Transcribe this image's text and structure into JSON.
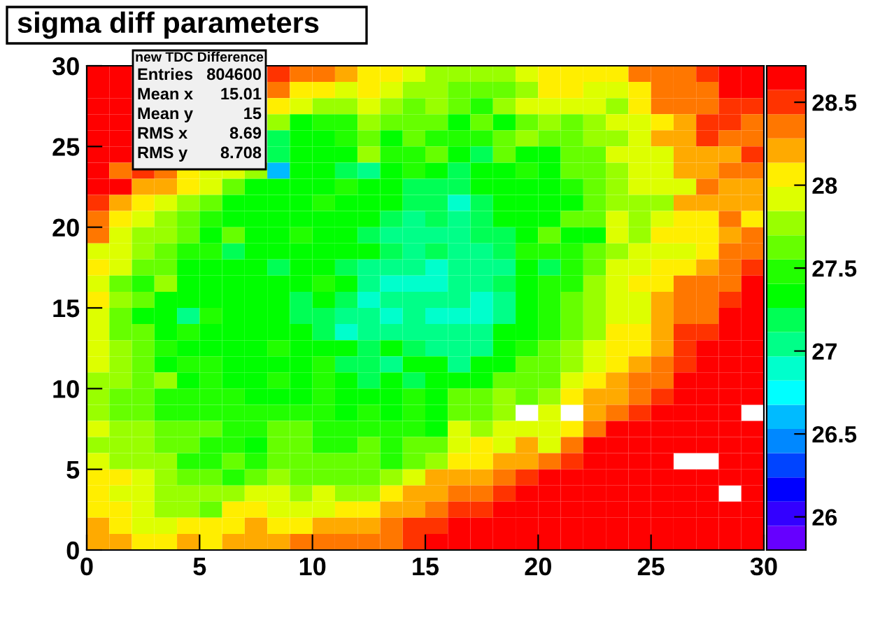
{
  "chart_data": {
    "type": "heatmap",
    "title": "sigma diff parameters",
    "annotations": [
      "new TDC Difference",
      "Entries 804600",
      "Mean x 15.01",
      "Mean y 15",
      "RMS x 8.69",
      "RMS y 8.708"
    ],
    "xlim": [
      0,
      30
    ],
    "ylim": [
      0,
      30
    ],
    "xticks": [
      0,
      5,
      10,
      15,
      20,
      25,
      30
    ],
    "yticks": [
      0,
      5,
      10,
      15,
      20,
      25,
      30
    ],
    "clim": [
      25.8,
      28.72
    ],
    "cticks": [
      26,
      26.5,
      27,
      27.5,
      28,
      28.5
    ],
    "grid": false,
    "cells": [
      [
        28.65,
        28.65,
        null,
        null,
        null,
        null,
        null,
        null,
        28.5,
        28.35,
        28.35,
        28.21,
        28.06,
        28.06,
        27.92,
        27.77,
        27.77,
        27.77,
        27.77,
        27.92,
        28.06,
        28.06,
        28.06,
        28.06,
        28.35,
        28.35,
        28.35,
        28.5,
        28.65,
        28.65
      ],
      [
        28.65,
        28.65,
        null,
        null,
        null,
        null,
        null,
        null,
        28.35,
        28.06,
        28.06,
        27.92,
        28.06,
        27.92,
        27.77,
        27.77,
        27.63,
        27.63,
        27.63,
        27.77,
        28.06,
        28.06,
        27.92,
        27.92,
        28.06,
        28.35,
        28.35,
        28.35,
        28.65,
        28.65
      ],
      [
        28.65,
        28.65,
        null,
        null,
        null,
        null,
        null,
        null,
        28.06,
        27.92,
        27.77,
        27.77,
        27.92,
        27.77,
        27.63,
        27.77,
        27.63,
        27.48,
        27.77,
        27.92,
        27.92,
        27.92,
        27.92,
        27.77,
        28.06,
        28.35,
        28.35,
        28.35,
        28.5,
        28.5
      ],
      [
        28.65,
        28.65,
        null,
        null,
        null,
        null,
        null,
        null,
        27.77,
        27.33,
        27.48,
        27.48,
        27.77,
        27.63,
        27.63,
        27.63,
        27.33,
        27.63,
        27.33,
        27.63,
        27.77,
        27.63,
        27.77,
        27.92,
        27.92,
        28.06,
        28.21,
        28.5,
        28.5,
        28.35
      ],
      [
        28.65,
        28.65,
        null,
        null,
        null,
        null,
        null,
        null,
        27.19,
        27.33,
        27.33,
        27.48,
        27.63,
        27.33,
        27.63,
        27.48,
        27.48,
        27.48,
        27.63,
        27.77,
        27.63,
        27.63,
        27.77,
        27.77,
        27.92,
        28.21,
        28.21,
        28.5,
        28.35,
        28.35
      ],
      [
        28.65,
        28.65,
        null,
        null,
        null,
        null,
        null,
        null,
        27.19,
        27.33,
        27.33,
        27.33,
        27.77,
        27.48,
        27.48,
        27.63,
        27.33,
        27.19,
        27.63,
        27.33,
        27.33,
        27.63,
        27.63,
        27.92,
        27.92,
        27.92,
        28.21,
        28.21,
        28.21,
        28.5
      ],
      [
        28.65,
        28.35,
        28.5,
        28.35,
        28.06,
        27.92,
        27.92,
        27.77,
        26.6,
        27.33,
        27.33,
        27.19,
        27.04,
        27.33,
        27.48,
        27.33,
        27.19,
        27.33,
        27.33,
        27.48,
        27.33,
        27.63,
        27.63,
        27.77,
        27.92,
        27.92,
        28.21,
        28.21,
        28.35,
        28.35
      ],
      [
        28.65,
        28.65,
        28.21,
        28.21,
        28.06,
        27.92,
        27.63,
        27.33,
        27.33,
        27.33,
        27.33,
        27.48,
        27.33,
        27.33,
        27.19,
        27.19,
        27.19,
        27.33,
        27.33,
        27.33,
        27.33,
        27.48,
        27.63,
        27.77,
        27.92,
        27.92,
        27.92,
        28.35,
        28.21,
        28.21
      ],
      [
        28.5,
        28.21,
        28.06,
        27.92,
        27.77,
        27.63,
        27.33,
        27.33,
        27.33,
        27.33,
        27.48,
        27.33,
        27.33,
        27.33,
        27.19,
        27.19,
        26.9,
        27.19,
        27.33,
        27.33,
        27.33,
        27.33,
        27.63,
        27.77,
        27.77,
        27.77,
        28.21,
        28.21,
        28.21,
        28.21
      ],
      [
        28.35,
        28.06,
        27.92,
        27.77,
        27.63,
        27.48,
        27.33,
        27.33,
        27.33,
        27.33,
        27.33,
        27.33,
        27.33,
        27.19,
        27.04,
        27.19,
        27.04,
        27.19,
        27.33,
        27.33,
        27.33,
        27.63,
        27.63,
        27.92,
        27.77,
        27.92,
        28.06,
        28.06,
        28.35,
        28.06
      ],
      [
        28.35,
        27.92,
        27.77,
        27.77,
        27.63,
        27.33,
        27.63,
        27.33,
        27.33,
        27.48,
        27.33,
        27.33,
        27.19,
        27.04,
        27.04,
        27.04,
        27.04,
        27.19,
        27.19,
        27.33,
        27.63,
        27.33,
        27.33,
        27.92,
        27.77,
        28.06,
        28.06,
        28.06,
        28.21,
        28.35
      ],
      [
        27.92,
        27.92,
        27.77,
        27.63,
        27.48,
        27.48,
        27.19,
        27.33,
        27.33,
        27.33,
        27.33,
        27.33,
        27.33,
        27.19,
        27.04,
        27.19,
        27.04,
        27.04,
        27.19,
        27.48,
        27.48,
        27.48,
        27.63,
        27.77,
        27.92,
        27.92,
        27.92,
        28.06,
        28.35,
        28.35
      ],
      [
        28.06,
        27.92,
        27.63,
        27.63,
        27.33,
        27.33,
        27.33,
        27.33,
        27.19,
        27.33,
        27.33,
        27.19,
        27.04,
        27.04,
        27.04,
        26.9,
        27.04,
        27.04,
        27.04,
        27.33,
        27.19,
        27.48,
        27.63,
        27.92,
        27.92,
        28.06,
        28.06,
        28.21,
        28.35,
        28.5
      ],
      [
        27.92,
        27.63,
        27.48,
        27.77,
        27.33,
        27.33,
        27.33,
        27.33,
        27.33,
        27.33,
        27.48,
        27.33,
        27.04,
        26.9,
        26.9,
        26.9,
        27.04,
        27.04,
        27.19,
        27.33,
        27.48,
        27.48,
        27.77,
        27.92,
        28.06,
        28.06,
        28.35,
        28.35,
        28.35,
        28.65
      ],
      [
        28.06,
        27.77,
        27.63,
        27.33,
        27.33,
        27.33,
        27.33,
        27.33,
        27.33,
        27.19,
        27.33,
        27.19,
        26.9,
        27.04,
        27.04,
        27.04,
        27.04,
        26.9,
        27.04,
        27.33,
        27.48,
        27.63,
        27.77,
        27.92,
        27.92,
        28.21,
        28.35,
        28.35,
        28.5,
        28.65
      ],
      [
        27.92,
        27.63,
        27.33,
        27.33,
        27.04,
        27.48,
        27.33,
        27.33,
        27.33,
        27.19,
        27.19,
        27.04,
        27.04,
        26.9,
        27.04,
        26.9,
        26.9,
        26.9,
        27.04,
        27.33,
        27.48,
        27.63,
        27.77,
        27.92,
        27.92,
        28.21,
        28.35,
        28.35,
        28.65,
        28.65
      ],
      [
        27.92,
        27.63,
        27.63,
        27.33,
        27.48,
        27.33,
        27.33,
        27.33,
        27.33,
        27.33,
        27.19,
        26.9,
        27.04,
        27.04,
        27.04,
        27.04,
        27.04,
        27.04,
        27.33,
        27.33,
        27.48,
        27.63,
        27.77,
        28.06,
        28.06,
        28.21,
        28.5,
        28.5,
        28.65,
        28.65
      ],
      [
        27.92,
        27.77,
        27.63,
        27.48,
        27.33,
        27.33,
        27.33,
        27.33,
        27.48,
        27.33,
        27.33,
        27.33,
        27.19,
        27.33,
        27.19,
        27.04,
        27.04,
        27.04,
        27.33,
        27.48,
        27.63,
        27.77,
        27.92,
        28.06,
        28.06,
        28.21,
        28.5,
        28.65,
        28.65,
        28.65
      ],
      [
        27.92,
        27.77,
        27.63,
        27.33,
        27.48,
        27.48,
        27.33,
        27.33,
        27.33,
        27.33,
        27.48,
        27.19,
        27.19,
        27.04,
        27.33,
        27.33,
        27.04,
        27.33,
        27.33,
        27.63,
        27.63,
        27.77,
        27.92,
        28.06,
        28.21,
        28.35,
        28.5,
        28.65,
        28.65,
        28.65
      ],
      [
        27.77,
        27.77,
        27.63,
        27.77,
        27.33,
        27.48,
        27.33,
        27.33,
        27.48,
        27.33,
        27.48,
        27.33,
        27.19,
        27.33,
        27.19,
        27.33,
        27.33,
        27.33,
        27.63,
        27.63,
        27.63,
        27.92,
        28.06,
        28.21,
        28.35,
        28.35,
        28.65,
        28.65,
        28.65,
        28.65
      ],
      [
        27.77,
        27.63,
        27.63,
        27.48,
        27.48,
        27.48,
        27.48,
        27.33,
        27.33,
        27.33,
        27.48,
        27.33,
        27.33,
        27.33,
        27.48,
        27.33,
        27.63,
        27.63,
        27.77,
        27.63,
        27.77,
        28.06,
        28.21,
        28.21,
        28.35,
        28.5,
        28.65,
        28.65,
        28.65,
        28.65
      ],
      [
        27.77,
        27.63,
        27.63,
        27.48,
        27.48,
        27.48,
        27.48,
        27.48,
        27.48,
        27.48,
        27.48,
        27.33,
        27.48,
        27.33,
        27.48,
        27.33,
        27.63,
        27.63,
        27.77,
        null,
        27.92,
        null,
        28.21,
        28.35,
        28.5,
        28.65,
        28.65,
        28.65,
        28.65,
        null
      ],
      [
        27.92,
        27.77,
        27.77,
        27.63,
        27.63,
        27.63,
        27.48,
        27.48,
        27.63,
        27.63,
        27.48,
        27.48,
        27.48,
        27.48,
        27.48,
        27.33,
        27.92,
        27.77,
        27.92,
        27.92,
        27.92,
        28.06,
        28.35,
        28.65,
        28.65,
        28.65,
        28.65,
        28.65,
        28.65,
        28.65
      ],
      [
        27.77,
        27.77,
        27.77,
        27.63,
        27.63,
        27.48,
        27.48,
        27.33,
        27.63,
        27.63,
        27.48,
        27.48,
        27.63,
        27.48,
        27.63,
        27.63,
        27.92,
        28.06,
        27.92,
        28.21,
        27.92,
        28.35,
        28.65,
        28.65,
        28.65,
        28.65,
        28.65,
        28.65,
        28.65,
        28.65
      ],
      [
        27.92,
        27.77,
        27.77,
        27.77,
        27.48,
        27.48,
        27.63,
        27.48,
        27.63,
        27.63,
        27.63,
        27.63,
        27.63,
        27.48,
        27.63,
        27.77,
        28.06,
        28.06,
        28.21,
        28.21,
        28.35,
        28.5,
        28.65,
        28.65,
        28.65,
        28.65,
        null,
        null,
        28.65,
        28.65
      ],
      [
        28.06,
        28.06,
        27.92,
        27.77,
        27.63,
        27.63,
        27.48,
        27.63,
        27.77,
        27.63,
        27.63,
        27.63,
        27.63,
        27.77,
        27.92,
        28.21,
        28.21,
        28.21,
        28.35,
        28.5,
        28.65,
        28.65,
        28.65,
        28.65,
        28.65,
        28.65,
        28.65,
        28.65,
        28.65,
        28.65
      ],
      [
        28.06,
        27.92,
        27.92,
        27.77,
        27.77,
        27.77,
        27.77,
        27.92,
        27.92,
        27.77,
        27.92,
        27.77,
        27.77,
        28.06,
        28.21,
        28.21,
        28.35,
        28.35,
        28.5,
        28.65,
        28.65,
        28.65,
        28.65,
        28.65,
        28.65,
        28.65,
        28.65,
        28.65,
        null,
        28.65
      ],
      [
        28.06,
        28.06,
        27.92,
        27.77,
        27.77,
        27.63,
        28.06,
        28.06,
        27.92,
        27.92,
        27.92,
        28.06,
        28.06,
        28.21,
        28.21,
        28.35,
        28.5,
        28.5,
        28.65,
        28.65,
        28.65,
        28.65,
        28.65,
        28.65,
        28.65,
        28.65,
        28.65,
        28.65,
        28.65,
        28.65
      ],
      [
        28.21,
        28.06,
        27.92,
        27.92,
        28.06,
        28.06,
        28.06,
        28.21,
        28.06,
        28.06,
        28.21,
        28.21,
        28.21,
        28.35,
        28.5,
        28.5,
        28.65,
        28.65,
        28.65,
        28.65,
        28.65,
        28.65,
        28.65,
        28.65,
        28.65,
        28.65,
        28.65,
        28.65,
        28.65,
        28.65
      ],
      [
        28.21,
        28.21,
        28.06,
        28.06,
        28.21,
        28.06,
        28.21,
        28.21,
        28.21,
        28.35,
        28.35,
        28.35,
        28.35,
        28.35,
        28.5,
        28.65,
        28.65,
        28.65,
        28.65,
        28.65,
        28.65,
        28.65,
        28.65,
        28.65,
        28.65,
        28.65,
        28.65,
        28.65,
        28.65,
        28.65
      ]
    ]
  }
}
